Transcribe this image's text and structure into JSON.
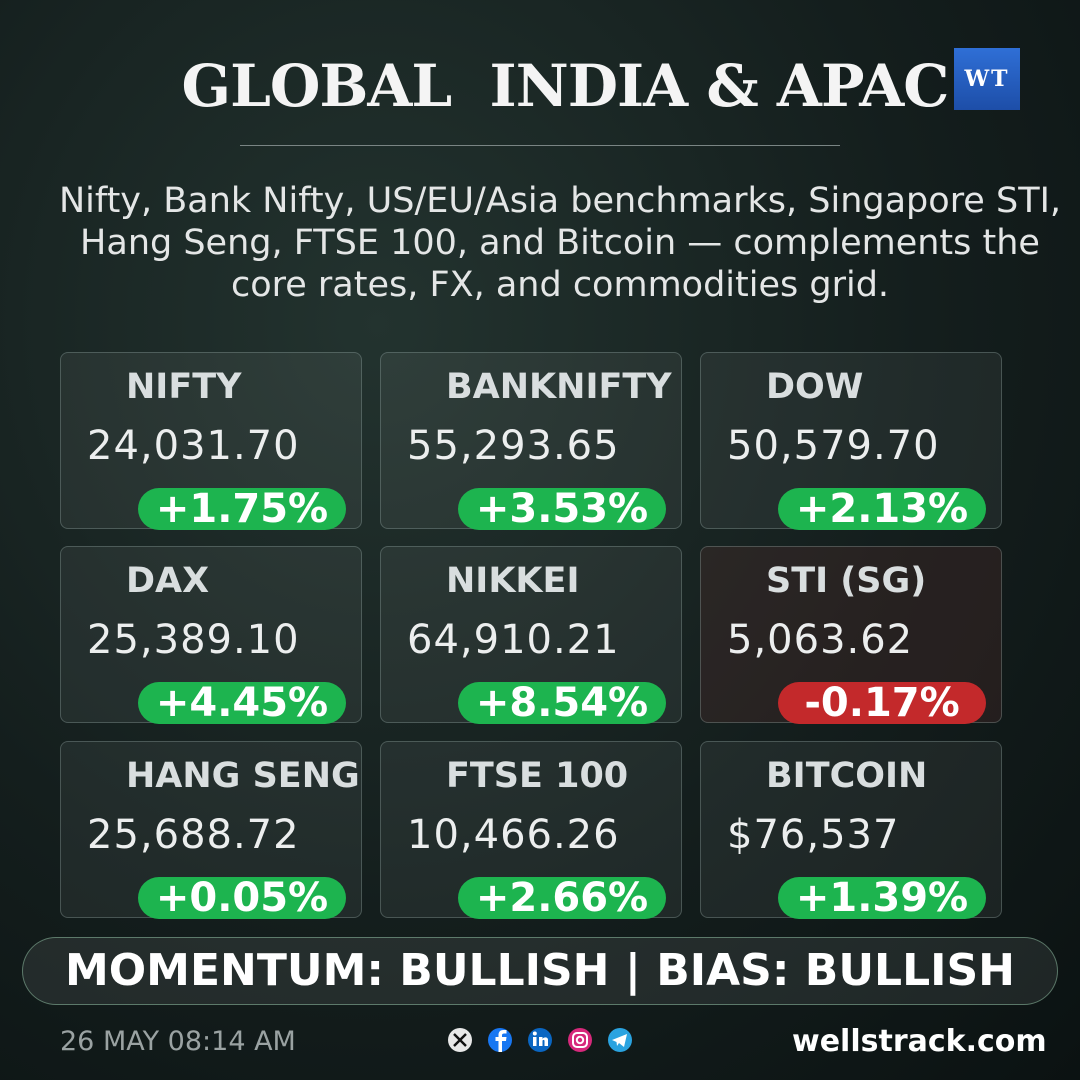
{
  "header": {
    "title": "GLOBAL  INDIA & APAC",
    "logo": "WT",
    "subtitle": "Nifty, Bank Nifty, US/EU/Asia benchmarks, Singapore STI, Hang Seng, FTSE 100, and Bitcoin — complements the core rates, FX, and commodities grid."
  },
  "cards": [
    {
      "name": "NIFTY",
      "value": "24,031.70",
      "change": "+1.75%",
      "direction": "up"
    },
    {
      "name": "BANKNIFTY",
      "value": "55,293.65",
      "change": "+3.53%",
      "direction": "up"
    },
    {
      "name": "DOW",
      "value": "50,579.70",
      "change": "+2.13%",
      "direction": "up"
    },
    {
      "name": "DAX",
      "value": "25,389.10",
      "change": "+4.45%",
      "direction": "up"
    },
    {
      "name": "NIKKEI",
      "value": "64,910.21",
      "change": "+8.54%",
      "direction": "up"
    },
    {
      "name": "STI (SG)",
      "value": "5,063.62",
      "change": "-0.17%",
      "direction": "down"
    },
    {
      "name": "HANG SENG",
      "value": "25,688.72",
      "change": "+0.05%",
      "direction": "up"
    },
    {
      "name": "FTSE 100",
      "value": "10,466.26",
      "change": "+2.66%",
      "direction": "up"
    },
    {
      "name": "BITCOIN",
      "value": "$76,537",
      "change": "+1.39%",
      "direction": "up"
    }
  ],
  "banner": "MOMENTUM: BULLISH | BIAS: BULLISH",
  "footer": {
    "date": "26 MAY 08:14 AM",
    "site": "wellstrack.com"
  }
}
